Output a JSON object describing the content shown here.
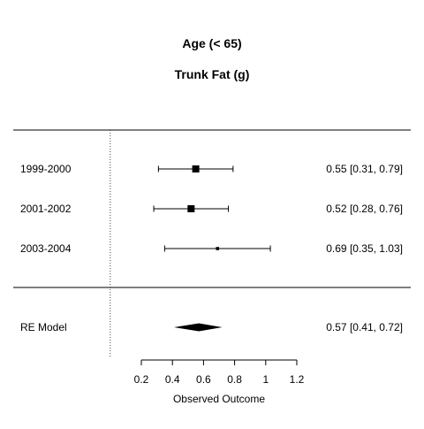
{
  "chart_data": {
    "type": "forest",
    "title": "Age (< 65)",
    "subtitle": "Trunk Fat (g)",
    "xlabel": "Observed Outcome",
    "xticks": [
      0.2,
      0.4,
      0.6,
      0.8,
      1,
      1.2
    ],
    "xlim": [
      0.2,
      1.2
    ],
    "reference_line": 0,
    "studies": [
      {
        "label": "1999-2000",
        "estimate": 0.55,
        "ci_lower": 0.31,
        "ci_upper": 0.79,
        "ci_text": "0.55 [0.31, 0.79]",
        "weight": 1.0
      },
      {
        "label": "2001-2002",
        "estimate": 0.52,
        "ci_lower": 0.28,
        "ci_upper": 0.76,
        "ci_text": "0.52 [0.28, 0.76]",
        "weight": 1.0
      },
      {
        "label": "2003-2004",
        "estimate": 0.69,
        "ci_lower": 0.35,
        "ci_upper": 1.03,
        "ci_text": "0.69 [0.35, 1.03]",
        "weight": 0.2
      }
    ],
    "summary": {
      "label": "RE Model",
      "estimate": 0.57,
      "ci_lower": 0.41,
      "ci_upper": 0.72,
      "ci_text": "0.57 [0.41, 0.72]"
    }
  }
}
